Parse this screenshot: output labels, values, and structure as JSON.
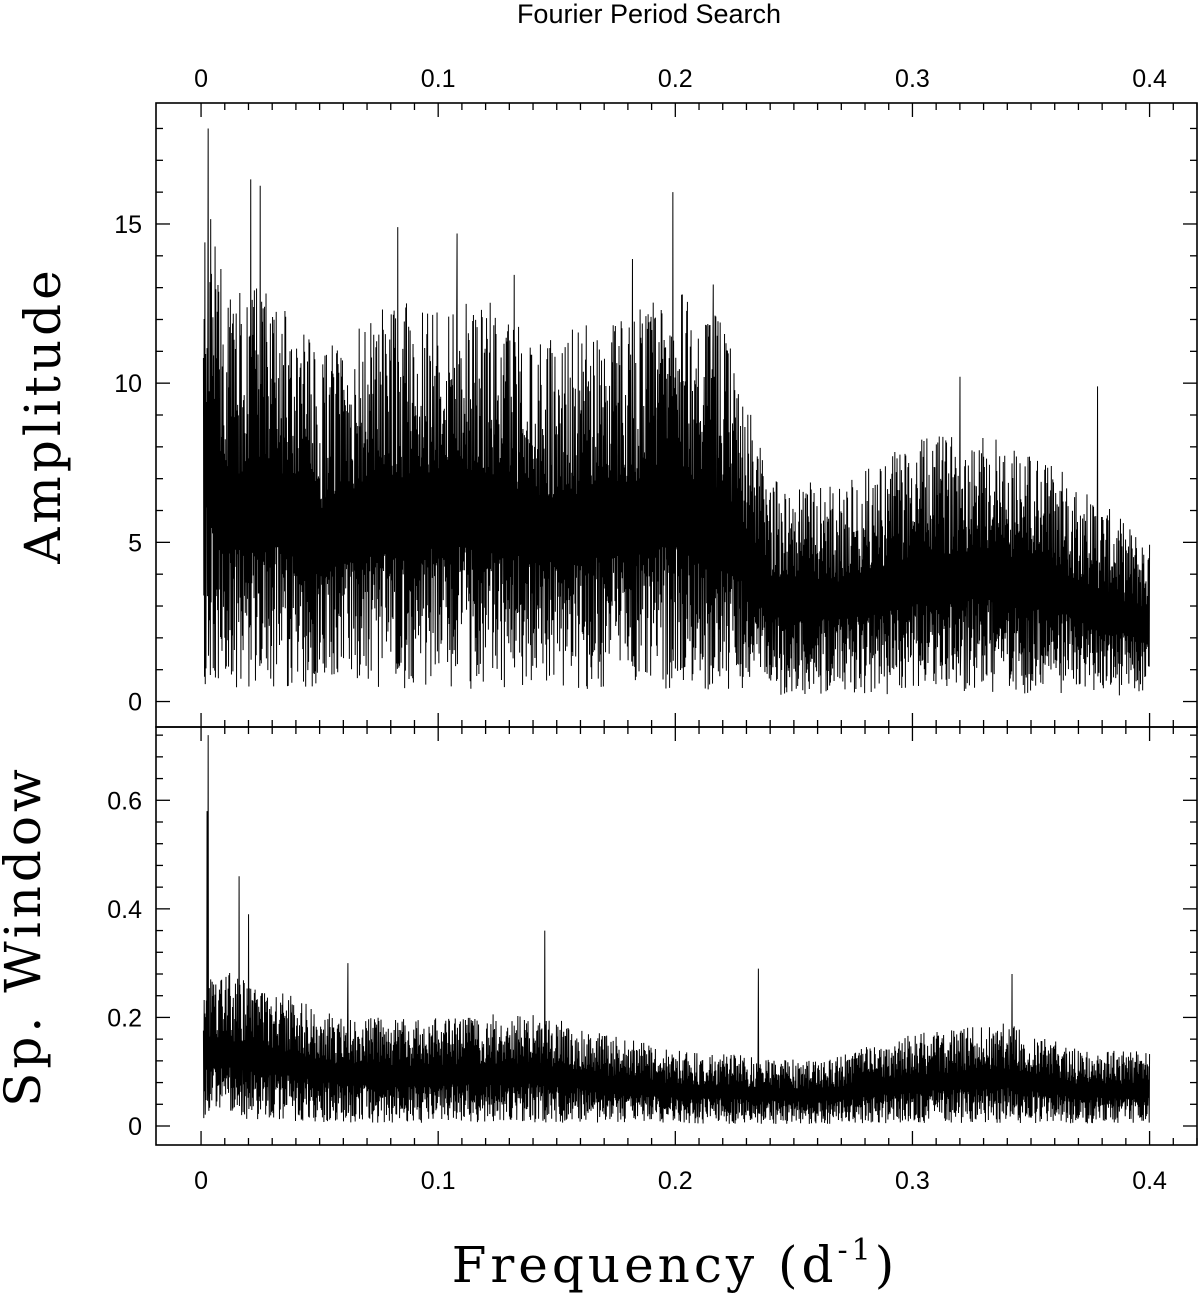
{
  "chart_data": [
    {
      "type": "line",
      "title": "Fourier Period Search",
      "ylabel": "Amplitude",
      "xlim": [
        -0.019,
        0.42
      ],
      "ylim": [
        -0.8,
        18.8
      ],
      "x_ticks": [
        "0",
        "0.1",
        "0.2",
        "0.3",
        "0.4"
      ],
      "x_tick_values": [
        0,
        0.1,
        0.2,
        0.3,
        0.4
      ],
      "y_ticks": [
        "0",
        "5",
        "10",
        "15"
      ],
      "y_tick_values": [
        0,
        5,
        10,
        15
      ],
      "series": [
        {
          "x_range": [
            0.001,
            0.4
          ],
          "peaks": [
            {
              "x": 0.003,
              "y": 18.0
            },
            {
              "x": 0.021,
              "y": 16.4
            },
            {
              "x": 0.025,
              "y": 16.2
            },
            {
              "x": 0.083,
              "y": 14.9
            },
            {
              "x": 0.108,
              "y": 14.7
            },
            {
              "x": 0.132,
              "y": 13.4
            },
            {
              "x": 0.182,
              "y": 13.9
            },
            {
              "x": 0.199,
              "y": 16.0
            },
            {
              "x": 0.216,
              "y": 13.1
            },
            {
              "x": 0.32,
              "y": 10.2
            },
            {
              "x": 0.378,
              "y": 9.9
            }
          ],
          "envelope": [
            {
              "x": 0.0,
              "y": 17.5
            },
            {
              "x": 0.01,
              "y": 13.0
            },
            {
              "x": 0.03,
              "y": 13.0
            },
            {
              "x": 0.05,
              "y": 11.0
            },
            {
              "x": 0.08,
              "y": 12.5
            },
            {
              "x": 0.11,
              "y": 13.0
            },
            {
              "x": 0.15,
              "y": 11.5
            },
            {
              "x": 0.2,
              "y": 13.0
            },
            {
              "x": 0.22,
              "y": 12.0
            },
            {
              "x": 0.24,
              "y": 7.0
            },
            {
              "x": 0.27,
              "y": 6.8
            },
            {
              "x": 0.3,
              "y": 8.2
            },
            {
              "x": 0.33,
              "y": 8.6
            },
            {
              "x": 0.36,
              "y": 7.5
            },
            {
              "x": 0.4,
              "y": 5.0
            }
          ]
        }
      ]
    },
    {
      "type": "line",
      "xlabel_main": "Frequency (d",
      "xlabel_sup": "-1",
      "xlabel_end": ")",
      "ylabel": "Sp. Window",
      "xlim": [
        -0.019,
        0.42
      ],
      "ylim": [
        -0.035,
        0.735
      ],
      "x_ticks": [
        "0",
        "0.1",
        "0.2",
        "0.3",
        "0.4"
      ],
      "x_tick_values": [
        0,
        0.1,
        0.2,
        0.3,
        0.4
      ],
      "y_ticks": [
        "0",
        "0.2",
        "0.4",
        "0.6"
      ],
      "y_tick_values": [
        0,
        0.2,
        0.4,
        0.6
      ],
      "series": [
        {
          "x_range": [
            0.001,
            0.4
          ],
          "peaks": [
            {
              "x": 0.003,
              "y": 0.72
            },
            {
              "x": 0.0025,
              "y": 0.58
            },
            {
              "x": 0.016,
              "y": 0.46
            },
            {
              "x": 0.02,
              "y": 0.39
            },
            {
              "x": 0.145,
              "y": 0.36
            },
            {
              "x": 0.235,
              "y": 0.29
            },
            {
              "x": 0.342,
              "y": 0.28
            },
            {
              "x": 0.062,
              "y": 0.3
            }
          ],
          "envelope": [
            {
              "x": 0.0,
              "y": 0.3
            },
            {
              "x": 0.03,
              "y": 0.26
            },
            {
              "x": 0.06,
              "y": 0.2
            },
            {
              "x": 0.1,
              "y": 0.2
            },
            {
              "x": 0.14,
              "y": 0.21
            },
            {
              "x": 0.17,
              "y": 0.17
            },
            {
              "x": 0.2,
              "y": 0.14
            },
            {
              "x": 0.26,
              "y": 0.12
            },
            {
              "x": 0.3,
              "y": 0.17
            },
            {
              "x": 0.34,
              "y": 0.19
            },
            {
              "x": 0.37,
              "y": 0.14
            },
            {
              "x": 0.4,
              "y": 0.14
            }
          ]
        }
      ]
    }
  ]
}
